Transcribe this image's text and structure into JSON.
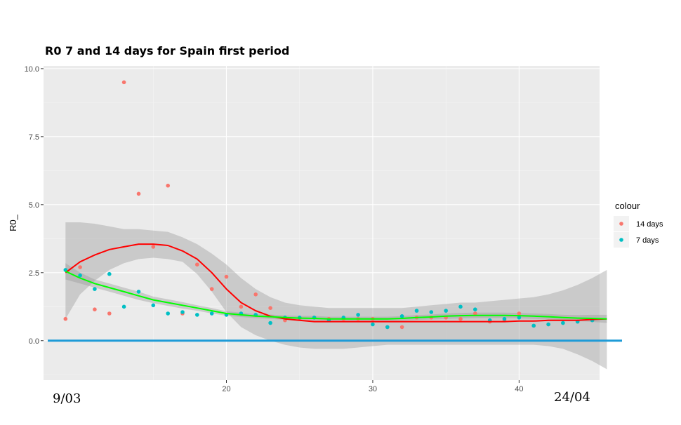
{
  "chart_data": {
    "type": "scatter",
    "title": "R0 7 and 14 days for Spain first period",
    "xlabel": "",
    "ylabel": "R0_",
    "xlim": [
      7.5,
      45.5
    ],
    "ylim": [
      -1.45,
      10.1
    ],
    "x_ticks": [
      20,
      30,
      40
    ],
    "y_ticks": [
      0.0,
      2.5,
      5.0,
      7.5,
      10.0
    ],
    "y_tick_labels": [
      "0.0",
      "2.5",
      "5.0",
      "7.5",
      "10.0"
    ],
    "grid": true,
    "legend": {
      "title": "colour",
      "placement": "right",
      "entries": [
        {
          "label": "14 days",
          "color": "#F8766D"
        },
        {
          "label": "7 days",
          "color": "#00BFC4"
        }
      ]
    },
    "reference_line": {
      "y": 0,
      "color": "#1E9BD7"
    },
    "annotations": [
      {
        "text": "9/03",
        "near": "bottom-left"
      },
      {
        "text": "24/04",
        "near": "bottom-right"
      }
    ],
    "series": [
      {
        "name": "14 days",
        "color": "#F8766D",
        "x": [
          9,
          10,
          11,
          12,
          13,
          14,
          15,
          16,
          17,
          18,
          19,
          20,
          21,
          22,
          23,
          24,
          25,
          26,
          27,
          28,
          29,
          30,
          31,
          32,
          33,
          34,
          35,
          36,
          37,
          38,
          39,
          40,
          41,
          42,
          43,
          44,
          45
        ],
        "y": [
          0.8,
          2.7,
          1.15,
          1.0,
          9.5,
          5.4,
          3.45,
          5.7,
          1.0,
          2.8,
          1.9,
          2.35,
          1.25,
          1.7,
          1.2,
          0.75,
          0.8,
          0.85,
          0.8,
          0.8,
          0.8,
          0.8,
          0.5,
          0.5,
          0.85,
          0.85,
          0.85,
          0.8,
          1.0,
          0.7,
          0.75,
          1.0,
          0.55,
          0.6,
          0.65,
          0.7,
          0.75
        ]
      },
      {
        "name": "7 days",
        "color": "#00BFC4",
        "x": [
          9,
          10,
          11,
          12,
          13,
          14,
          15,
          16,
          17,
          18,
          19,
          20,
          21,
          22,
          23,
          24,
          25,
          26,
          27,
          28,
          29,
          30,
          31,
          32,
          33,
          34,
          35,
          36,
          37,
          38,
          39,
          40,
          41,
          42,
          43,
          44,
          45
        ],
        "y": [
          2.6,
          2.4,
          1.9,
          2.45,
          1.25,
          1.8,
          1.3,
          1.0,
          1.05,
          0.95,
          1.0,
          0.95,
          1.0,
          0.95,
          0.65,
          0.85,
          0.85,
          0.85,
          0.75,
          0.85,
          0.95,
          0.6,
          0.5,
          0.9,
          1.1,
          1.05,
          1.1,
          1.25,
          1.15,
          0.75,
          0.8,
          0.85,
          0.55,
          0.6,
          0.65,
          0.7,
          0.75
        ]
      }
    ],
    "smooth_lines": [
      {
        "for_series": "14 days",
        "color": "#FF0000",
        "x": [
          9,
          10,
          11,
          12,
          13,
          14,
          15,
          16,
          17,
          18,
          19,
          20,
          21,
          22,
          23,
          24,
          25,
          26,
          27,
          28,
          29,
          30,
          31,
          32,
          33,
          34,
          35,
          36,
          37,
          38,
          39,
          40,
          41,
          42,
          43,
          44,
          45,
          46
        ],
        "y": [
          2.5,
          2.9,
          3.15,
          3.35,
          3.45,
          3.55,
          3.55,
          3.5,
          3.3,
          3.0,
          2.5,
          1.9,
          1.4,
          1.1,
          0.9,
          0.8,
          0.75,
          0.7,
          0.7,
          0.7,
          0.7,
          0.7,
          0.7,
          0.7,
          0.7,
          0.7,
          0.7,
          0.7,
          0.7,
          0.7,
          0.7,
          0.72,
          0.72,
          0.75,
          0.75,
          0.75,
          0.78,
          0.8
        ],
        "ci_low": [
          0.8,
          1.7,
          2.2,
          2.6,
          2.85,
          3.0,
          3.05,
          3.0,
          2.9,
          2.45,
          1.8,
          1.05,
          0.5,
          0.2,
          0.0,
          -0.15,
          -0.25,
          -0.3,
          -0.3,
          -0.3,
          -0.25,
          -0.2,
          -0.15,
          -0.15,
          -0.15,
          -0.15,
          -0.15,
          -0.15,
          -0.15,
          -0.15,
          -0.15,
          -0.15,
          -0.15,
          -0.2,
          -0.3,
          -0.5,
          -0.75,
          -1.05
        ],
        "ci_high": [
          4.35,
          4.35,
          4.3,
          4.2,
          4.1,
          4.1,
          4.05,
          4.0,
          3.8,
          3.55,
          3.2,
          2.8,
          2.3,
          1.9,
          1.6,
          1.4,
          1.3,
          1.25,
          1.2,
          1.2,
          1.2,
          1.2,
          1.2,
          1.2,
          1.25,
          1.3,
          1.35,
          1.4,
          1.4,
          1.45,
          1.5,
          1.55,
          1.6,
          1.7,
          1.85,
          2.05,
          2.3,
          2.6
        ]
      },
      {
        "for_series": "7 days",
        "color": "#00FF00",
        "x": [
          9,
          10,
          11,
          12,
          13,
          14,
          15,
          16,
          17,
          18,
          19,
          20,
          21,
          22,
          23,
          24,
          25,
          26,
          27,
          28,
          29,
          30,
          31,
          32,
          33,
          34,
          35,
          36,
          37,
          38,
          39,
          40,
          41,
          42,
          43,
          44,
          45,
          46
        ],
        "y": [
          2.55,
          2.3,
          2.1,
          1.95,
          1.8,
          1.65,
          1.5,
          1.4,
          1.3,
          1.2,
          1.1,
          1.0,
          0.95,
          0.9,
          0.88,
          0.85,
          0.83,
          0.82,
          0.8,
          0.8,
          0.8,
          0.8,
          0.8,
          0.82,
          0.85,
          0.87,
          0.9,
          0.92,
          0.93,
          0.93,
          0.93,
          0.92,
          0.9,
          0.88,
          0.85,
          0.83,
          0.82,
          0.8
        ],
        "ci_low": [
          2.25,
          2.1,
          1.95,
          1.8,
          1.65,
          1.5,
          1.38,
          1.28,
          1.18,
          1.1,
          1.0,
          0.92,
          0.87,
          0.83,
          0.8,
          0.77,
          0.75,
          0.73,
          0.72,
          0.72,
          0.72,
          0.72,
          0.72,
          0.74,
          0.76,
          0.78,
          0.8,
          0.82,
          0.83,
          0.83,
          0.83,
          0.82,
          0.8,
          0.78,
          0.75,
          0.72,
          0.69,
          0.65
        ],
        "ci_high": [
          2.85,
          2.5,
          2.25,
          2.1,
          1.95,
          1.8,
          1.62,
          1.52,
          1.42,
          1.3,
          1.2,
          1.08,
          1.03,
          0.97,
          0.96,
          0.93,
          0.91,
          0.91,
          0.88,
          0.88,
          0.88,
          0.88,
          0.88,
          0.9,
          0.94,
          0.96,
          1.0,
          1.02,
          1.03,
          1.03,
          1.03,
          1.02,
          1.0,
          0.98,
          0.95,
          0.94,
          0.95,
          0.95
        ]
      }
    ]
  }
}
